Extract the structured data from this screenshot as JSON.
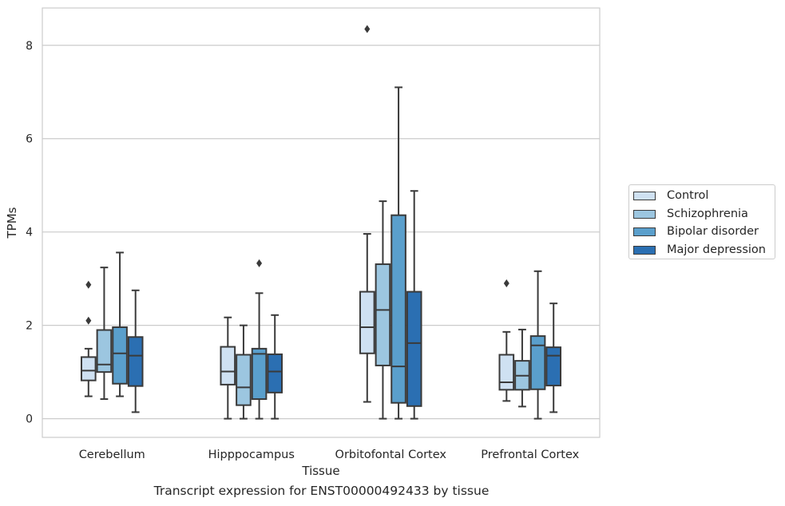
{
  "caption": "Transcript expression for ENST00000492433 by tissue",
  "colors": {
    "grid": "#cccccc",
    "frame": "#cccccc",
    "line": "#3a3a3a",
    "text": "#262626"
  },
  "chart_data": {
    "type": "boxplot",
    "xlabel": "Tissue",
    "ylabel": "TPMs",
    "ylim": [
      -0.4,
      8.8
    ],
    "yticks": [
      0,
      2,
      4,
      6,
      8
    ],
    "categories": [
      "Cerebellum",
      "Hipppocampus",
      "Orbitofontal Cortex",
      "Prefrontal Cortex"
    ],
    "grid": true,
    "legend_position": "right",
    "series": [
      {
        "name": "Control",
        "color": "#cfe1f2",
        "boxes": [
          {
            "min": 0.48,
            "q1": 0.82,
            "median": 1.03,
            "q3": 1.32,
            "max": 1.5,
            "outliers": [
              2.1,
              2.87
            ]
          },
          {
            "min": 0.0,
            "q1": 0.73,
            "median": 1.01,
            "q3": 1.54,
            "max": 2.17,
            "outliers": []
          },
          {
            "min": 0.36,
            "q1": 1.4,
            "median": 1.96,
            "q3": 2.72,
            "max": 3.96,
            "outliers": [
              8.35
            ]
          },
          {
            "min": 0.38,
            "q1": 0.62,
            "median": 0.78,
            "q3": 1.37,
            "max": 1.86,
            "outliers": [
              2.9
            ]
          }
        ]
      },
      {
        "name": "Schizophrenia",
        "color": "#9cc6e0",
        "boxes": [
          {
            "min": 0.42,
            "q1": 1.0,
            "median": 1.16,
            "q3": 1.9,
            "max": 3.24,
            "outliers": []
          },
          {
            "min": 0.0,
            "q1": 0.29,
            "median": 0.67,
            "q3": 1.37,
            "max": 2.0,
            "outliers": []
          },
          {
            "min": 0.0,
            "q1": 1.14,
            "median": 2.33,
            "q3": 3.31,
            "max": 4.66,
            "outliers": []
          },
          {
            "min": 0.26,
            "q1": 0.62,
            "median": 0.92,
            "q3": 1.24,
            "max": 1.91,
            "outliers": []
          }
        ]
      },
      {
        "name": "Bipolar disorder",
        "color": "#5a9fcc",
        "boxes": [
          {
            "min": 0.48,
            "q1": 0.75,
            "median": 1.4,
            "q3": 1.96,
            "max": 3.56,
            "outliers": []
          },
          {
            "min": 0.0,
            "q1": 0.42,
            "median": 1.39,
            "q3": 1.5,
            "max": 2.69,
            "outliers": [
              3.33
            ]
          },
          {
            "min": 0.0,
            "q1": 0.34,
            "median": 1.12,
            "q3": 4.36,
            "max": 7.1,
            "outliers": []
          },
          {
            "min": 0.0,
            "q1": 0.63,
            "median": 1.57,
            "q3": 1.77,
            "max": 3.16,
            "outliers": []
          }
        ]
      },
      {
        "name": "Major depression",
        "color": "#2b6fb2",
        "boxes": [
          {
            "min": 0.14,
            "q1": 0.7,
            "median": 1.35,
            "q3": 1.75,
            "max": 2.75,
            "outliers": []
          },
          {
            "min": 0.0,
            "q1": 0.56,
            "median": 1.01,
            "q3": 1.38,
            "max": 2.22,
            "outliers": []
          },
          {
            "min": 0.0,
            "q1": 0.27,
            "median": 1.62,
            "q3": 2.72,
            "max": 4.88,
            "outliers": []
          },
          {
            "min": 0.14,
            "q1": 0.71,
            "median": 1.35,
            "q3": 1.53,
            "max": 2.47,
            "outliers": []
          }
        ]
      }
    ]
  }
}
